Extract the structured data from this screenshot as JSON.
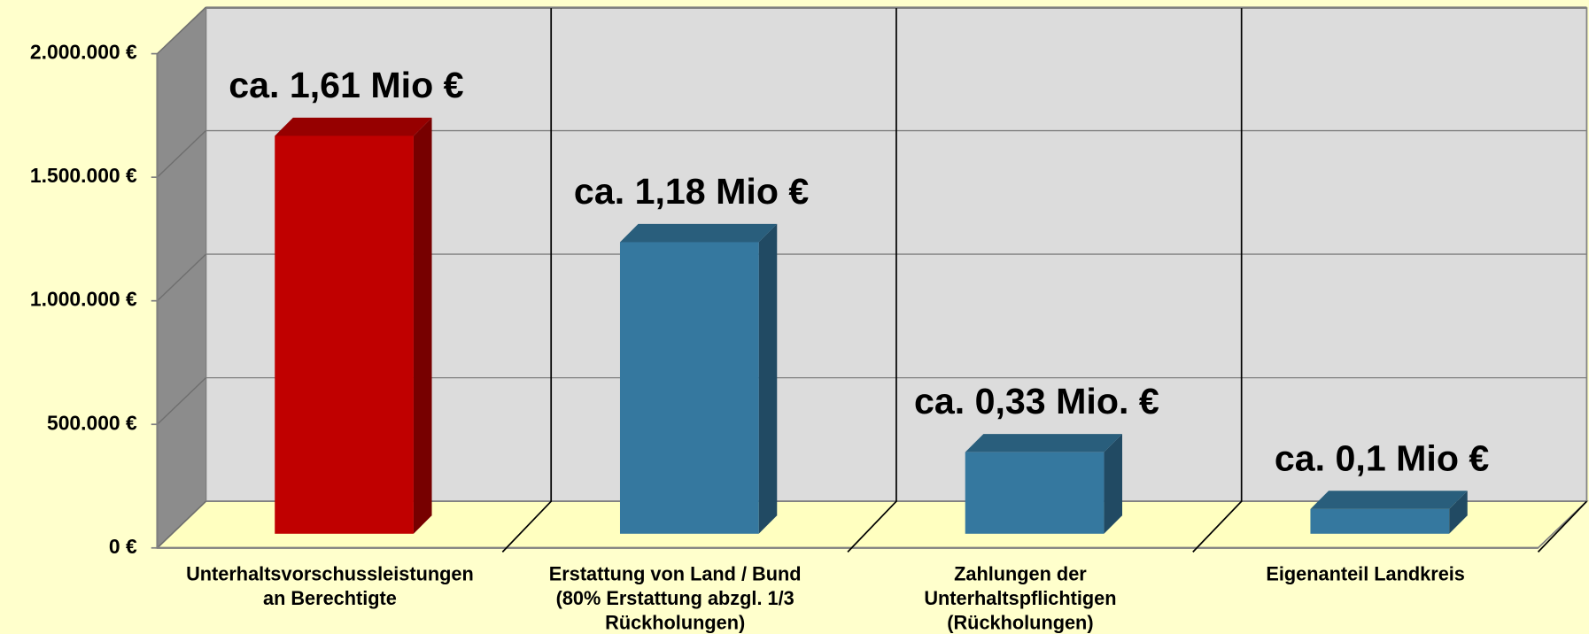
{
  "chart_data": {
    "type": "bar3d",
    "categories": [
      "Unterhaltsvorschussleistungen\nan Berechtigte",
      "Erstattung von Land / Bund\n(80% Erstattung abzgl. 1/3\nRückholungen)",
      "Zahlungen der\nUnterhaltspflichtigen\n(Rückholungen)",
      "Eigenanteil Landkreis"
    ],
    "values": [
      1610000,
      1180000,
      330000,
      100000
    ],
    "value_labels": [
      "ca. 1,61 Mio €",
      "ca. 1,18 Mio €",
      "ca. 0,33 Mio. €",
      "ca. 0,1 Mio €"
    ],
    "colors": [
      "#c00000",
      "#35789f",
      "#35789f",
      "#35789f"
    ],
    "ylim": [
      0,
      2000000
    ],
    "yticks": [
      {
        "value": 0,
        "label": "0 €"
      },
      {
        "value": 500000,
        "label": "500.000 €"
      },
      {
        "value": 1000000,
        "label": "1.000.000 €"
      },
      {
        "value": 1500000,
        "label": "1.500.000 €"
      },
      {
        "value": 2000000,
        "label": "2.000.000 €"
      }
    ],
    "grid": true
  }
}
